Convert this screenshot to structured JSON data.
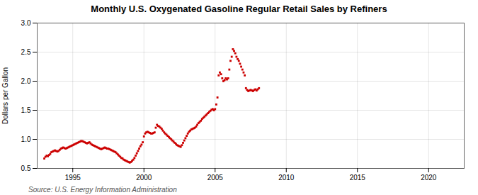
{
  "chart_data": {
    "type": "scatter",
    "title": "Monthly U.S. Oxygenated Gasoline Regular Retail Sales by Refiners",
    "ylabel": "Dollars per Gallon",
    "source": "Source: U.S. Energy Information Administration",
    "color": "#cc0000",
    "marker": "square",
    "grid": true,
    "xlim": [
      1992.5,
      2022.5
    ],
    "ylim": [
      0.5,
      3.0
    ],
    "xticks": [
      1995,
      2000,
      2005,
      2010,
      2015,
      2020
    ],
    "yticks": [
      0.5,
      {
        "value": 1.0,
        "label": "1.0"
      },
      1.5,
      {
        "value": 2.0,
        "label": "2.0"
      },
      2.5,
      {
        "value": 3.0,
        "label": "3.0"
      }
    ],
    "x": [
      1993.0,
      1993.083,
      1993.167,
      1993.25,
      1993.333,
      1993.417,
      1993.5,
      1993.583,
      1993.667,
      1993.75,
      1993.833,
      1993.917,
      1994.0,
      1994.083,
      1994.167,
      1994.25,
      1994.333,
      1994.417,
      1994.5,
      1994.583,
      1994.667,
      1994.75,
      1994.833,
      1994.917,
      1995.0,
      1995.083,
      1995.167,
      1995.25,
      1995.333,
      1995.417,
      1995.5,
      1995.583,
      1995.667,
      1995.75,
      1995.833,
      1995.917,
      1996.0,
      1996.083,
      1996.167,
      1996.25,
      1996.333,
      1996.417,
      1996.5,
      1996.583,
      1996.667,
      1996.75,
      1996.833,
      1996.917,
      1997.0,
      1997.083,
      1997.167,
      1997.25,
      1997.333,
      1997.417,
      1997.5,
      1997.583,
      1997.667,
      1997.75,
      1997.833,
      1997.917,
      1998.0,
      1998.083,
      1998.167,
      1998.25,
      1998.333,
      1998.417,
      1998.5,
      1998.583,
      1998.667,
      1998.75,
      1998.833,
      1998.917,
      1999.0,
      1999.083,
      1999.167,
      1999.25,
      1999.333,
      1999.417,
      1999.5,
      1999.583,
      1999.667,
      1999.75,
      1999.833,
      1999.917,
      2000.0,
      2000.083,
      2000.167,
      2000.25,
      2000.333,
      2000.417,
      2000.5,
      2000.583,
      2000.667,
      2000.75,
      2000.833,
      2000.917,
      2001.0,
      2001.083,
      2001.167,
      2001.25,
      2001.333,
      2001.417,
      2001.5,
      2001.583,
      2001.667,
      2001.75,
      2001.833,
      2001.917,
      2002.0,
      2002.083,
      2002.167,
      2002.25,
      2002.333,
      2002.417,
      2002.5,
      2002.583,
      2002.667,
      2002.75,
      2002.833,
      2002.917,
      2003.0,
      2003.083,
      2003.167,
      2003.25,
      2003.333,
      2003.417,
      2003.5,
      2003.583,
      2003.667,
      2003.75,
      2003.833,
      2003.917,
      2004.0,
      2004.083,
      2004.167,
      2004.25,
      2004.333,
      2004.417,
      2004.5,
      2004.583,
      2004.667,
      2004.75,
      2004.833,
      2004.917,
      2005.0,
      2005.083,
      2005.167,
      2005.25,
      2005.333,
      2005.417,
      2005.5,
      2005.583,
      2005.667,
      2005.75,
      2005.833,
      2005.917,
      2006.0,
      2006.083,
      2006.167,
      2006.25,
      2006.333,
      2006.417,
      2006.5,
      2006.583,
      2006.667,
      2006.75,
      2006.833,
      2006.917,
      2007.0,
      2007.083,
      2007.167,
      2007.25,
      2007.333,
      2007.417,
      2007.5,
      2007.583,
      2007.667,
      2007.75,
      2007.833,
      2007.917,
      2008.0,
      2008.083
    ],
    "values": [
      0.67,
      0.7,
      0.72,
      0.71,
      0.73,
      0.75,
      0.78,
      0.79,
      0.8,
      0.81,
      0.8,
      0.79,
      0.8,
      0.82,
      0.84,
      0.85,
      0.86,
      0.85,
      0.84,
      0.85,
      0.86,
      0.87,
      0.88,
      0.89,
      0.9,
      0.91,
      0.92,
      0.93,
      0.94,
      0.95,
      0.96,
      0.97,
      0.97,
      0.96,
      0.95,
      0.94,
      0.93,
      0.94,
      0.95,
      0.93,
      0.91,
      0.9,
      0.89,
      0.88,
      0.87,
      0.86,
      0.85,
      0.84,
      0.83,
      0.84,
      0.85,
      0.86,
      0.85,
      0.84,
      0.84,
      0.83,
      0.82,
      0.81,
      0.8,
      0.79,
      0.78,
      0.76,
      0.74,
      0.72,
      0.7,
      0.68,
      0.67,
      0.65,
      0.64,
      0.63,
      0.62,
      0.61,
      0.6,
      0.61,
      0.63,
      0.65,
      0.68,
      0.72,
      0.76,
      0.8,
      0.84,
      0.88,
      0.91,
      0.95,
      1.05,
      1.1,
      1.12,
      1.13,
      1.12,
      1.11,
      1.1,
      1.1,
      1.11,
      1.12,
      1.2,
      1.25,
      1.23,
      1.22,
      1.2,
      1.18,
      1.15,
      1.12,
      1.1,
      1.08,
      1.06,
      1.04,
      1.02,
      1.0,
      0.98,
      0.96,
      0.94,
      0.92,
      0.9,
      0.89,
      0.88,
      0.87,
      0.9,
      0.94,
      0.98,
      1.02,
      1.06,
      1.1,
      1.13,
      1.15,
      1.17,
      1.18,
      1.19,
      1.2,
      1.22,
      1.25,
      1.28,
      1.3,
      1.32,
      1.35,
      1.37,
      1.39,
      1.41,
      1.43,
      1.45,
      1.47,
      1.49,
      1.51,
      1.52,
      1.5,
      1.52,
      1.6,
      1.72,
      2.1,
      2.15,
      2.12,
      2.05,
      2.0,
      2.02,
      2.05,
      2.03,
      2.05,
      2.2,
      2.35,
      2.42,
      2.55,
      2.52,
      2.48,
      2.42,
      2.38,
      2.35,
      2.3,
      2.25,
      2.2,
      2.15,
      2.1,
      1.88,
      1.85,
      1.83,
      1.84,
      1.85,
      1.84,
      1.83,
      1.85,
      1.86,
      1.84,
      1.86,
      1.88
    ]
  }
}
